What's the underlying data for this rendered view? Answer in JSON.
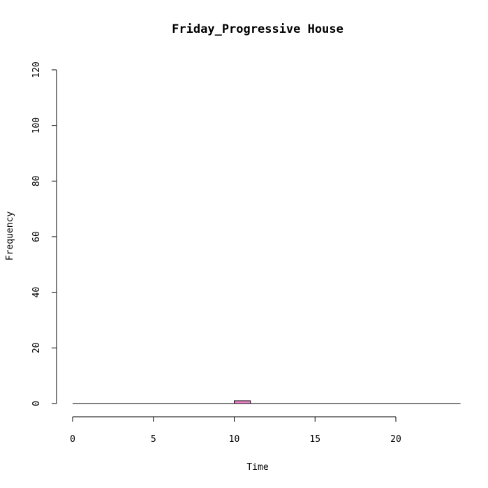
{
  "chart_data": {
    "type": "bar",
    "title": "Friday_Progressive House",
    "xlabel": "Time",
    "ylabel": "Frequency",
    "bar_color": "#ee82c8",
    "xlim": [
      0,
      24
    ],
    "ylim": [
      0,
      120
    ],
    "x_ticks": [
      0,
      5,
      10,
      15,
      20
    ],
    "y_ticks": [
      0,
      20,
      40,
      60,
      80,
      100,
      120
    ],
    "bins": [
      {
        "start": 10,
        "end": 11,
        "value": 1
      }
    ]
  }
}
